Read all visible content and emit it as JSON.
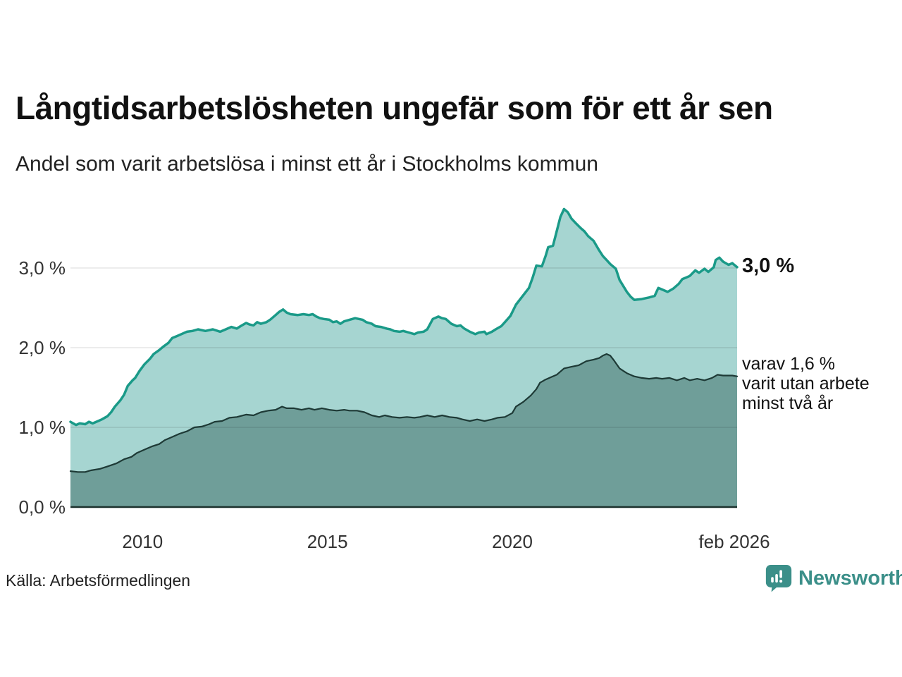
{
  "chart_data": {
    "type": "area",
    "title": "Långtidsarbetslösheten ungefär som för ett år sen",
    "subtitle": "Andel som varit arbetslösa i minst ett år i Stockholms kommun",
    "unit": "%",
    "xlim": [
      2008.05,
      2026.08
    ],
    "ylim": [
      0,
      3.9
    ],
    "grid": "horizontal",
    "legend": "none (direct annotations at line ends)",
    "x_ticks": [
      {
        "label": "2010",
        "x": 2010
      },
      {
        "label": "2015",
        "x": 2015
      },
      {
        "label": "2020",
        "x": 2020
      },
      {
        "label": "feb 2026",
        "x": 2026.08
      }
    ],
    "y_ticks": [
      {
        "label": "0,0 %",
        "value": 0
      },
      {
        "label": "1,0 %",
        "value": 1
      },
      {
        "label": "2,0 %",
        "value": 2
      },
      {
        "label": "3,0 %",
        "value": 3
      }
    ],
    "series": [
      {
        "id": "arbetslosa-minst-ett-ar",
        "end_value_label": "3,0 %",
        "color": "#1a9a88",
        "fill": "#a6d5d1",
        "points": [
          [
            2008.05,
            1.07
          ],
          [
            2008.2,
            1.03
          ],
          [
            2008.3,
            1.05
          ],
          [
            2008.45,
            1.04
          ],
          [
            2008.55,
            1.07
          ],
          [
            2008.65,
            1.05
          ],
          [
            2008.8,
            1.08
          ],
          [
            2008.9,
            1.1
          ],
          [
            2009.05,
            1.14
          ],
          [
            2009.15,
            1.19
          ],
          [
            2009.25,
            1.26
          ],
          [
            2009.4,
            1.34
          ],
          [
            2009.5,
            1.41
          ],
          [
            2009.6,
            1.52
          ],
          [
            2009.73,
            1.59
          ],
          [
            2009.8,
            1.62
          ],
          [
            2009.92,
            1.71
          ],
          [
            2010.05,
            1.79
          ],
          [
            2010.2,
            1.86
          ],
          [
            2010.3,
            1.92
          ],
          [
            2010.45,
            1.97
          ],
          [
            2010.55,
            2.01
          ],
          [
            2010.7,
            2.06
          ],
          [
            2010.8,
            2.12
          ],
          [
            2010.95,
            2.15
          ],
          [
            2011.05,
            2.17
          ],
          [
            2011.2,
            2.2
          ],
          [
            2011.35,
            2.21
          ],
          [
            2011.5,
            2.23
          ],
          [
            2011.7,
            2.21
          ],
          [
            2011.9,
            2.23
          ],
          [
            2012.1,
            2.2
          ],
          [
            2012.3,
            2.24
          ],
          [
            2012.4,
            2.26
          ],
          [
            2012.55,
            2.24
          ],
          [
            2012.65,
            2.27
          ],
          [
            2012.8,
            2.31
          ],
          [
            2012.9,
            2.29
          ],
          [
            2013.0,
            2.28
          ],
          [
            2013.1,
            2.32
          ],
          [
            2013.2,
            2.3
          ],
          [
            2013.35,
            2.32
          ],
          [
            2013.45,
            2.35
          ],
          [
            2013.6,
            2.41
          ],
          [
            2013.7,
            2.45
          ],
          [
            2013.8,
            2.48
          ],
          [
            2013.9,
            2.44
          ],
          [
            2014.0,
            2.42
          ],
          [
            2014.2,
            2.41
          ],
          [
            2014.35,
            2.42
          ],
          [
            2014.5,
            2.41
          ],
          [
            2014.6,
            2.42
          ],
          [
            2014.7,
            2.39
          ],
          [
            2014.8,
            2.37
          ],
          [
            2014.9,
            2.36
          ],
          [
            2015.05,
            2.35
          ],
          [
            2015.15,
            2.32
          ],
          [
            2015.25,
            2.33
          ],
          [
            2015.35,
            2.3
          ],
          [
            2015.45,
            2.33
          ],
          [
            2015.6,
            2.35
          ],
          [
            2015.75,
            2.37
          ],
          [
            2015.85,
            2.36
          ],
          [
            2015.95,
            2.35
          ],
          [
            2016.05,
            2.32
          ],
          [
            2016.2,
            2.3
          ],
          [
            2016.3,
            2.27
          ],
          [
            2016.45,
            2.26
          ],
          [
            2016.6,
            2.24
          ],
          [
            2016.7,
            2.23
          ],
          [
            2016.8,
            2.21
          ],
          [
            2016.95,
            2.2
          ],
          [
            2017.05,
            2.21
          ],
          [
            2017.2,
            2.19
          ],
          [
            2017.35,
            2.17
          ],
          [
            2017.45,
            2.19
          ],
          [
            2017.6,
            2.2
          ],
          [
            2017.7,
            2.23
          ],
          [
            2017.85,
            2.36
          ],
          [
            2018.0,
            2.39
          ],
          [
            2018.1,
            2.37
          ],
          [
            2018.2,
            2.36
          ],
          [
            2018.35,
            2.3
          ],
          [
            2018.5,
            2.27
          ],
          [
            2018.6,
            2.28
          ],
          [
            2018.7,
            2.24
          ],
          [
            2018.85,
            2.2
          ],
          [
            2019.0,
            2.17
          ],
          [
            2019.1,
            2.19
          ],
          [
            2019.25,
            2.2
          ],
          [
            2019.3,
            2.17
          ],
          [
            2019.45,
            2.2
          ],
          [
            2019.55,
            2.23
          ],
          [
            2019.7,
            2.27
          ],
          [
            2019.8,
            2.32
          ],
          [
            2019.95,
            2.4
          ],
          [
            2020.1,
            2.54
          ],
          [
            2020.3,
            2.66
          ],
          [
            2020.45,
            2.75
          ],
          [
            2020.55,
            2.88
          ],
          [
            2020.65,
            3.03
          ],
          [
            2020.8,
            3.02
          ],
          [
            2020.9,
            3.15
          ],
          [
            2020.97,
            3.26
          ],
          [
            2021.1,
            3.28
          ],
          [
            2021.2,
            3.46
          ],
          [
            2021.3,
            3.64
          ],
          [
            2021.4,
            3.74
          ],
          [
            2021.5,
            3.7
          ],
          [
            2021.6,
            3.62
          ],
          [
            2021.7,
            3.57
          ],
          [
            2021.85,
            3.5
          ],
          [
            2021.95,
            3.46
          ],
          [
            2022.05,
            3.4
          ],
          [
            2022.2,
            3.34
          ],
          [
            2022.35,
            3.22
          ],
          [
            2022.45,
            3.15
          ],
          [
            2022.55,
            3.1
          ],
          [
            2022.65,
            3.05
          ],
          [
            2022.8,
            2.99
          ],
          [
            2022.9,
            2.85
          ],
          [
            2023.1,
            2.7
          ],
          [
            2023.2,
            2.64
          ],
          [
            2023.3,
            2.6
          ],
          [
            2023.5,
            2.61
          ],
          [
            2023.7,
            2.63
          ],
          [
            2023.85,
            2.65
          ],
          [
            2023.95,
            2.75
          ],
          [
            2024.05,
            2.73
          ],
          [
            2024.2,
            2.7
          ],
          [
            2024.35,
            2.74
          ],
          [
            2024.5,
            2.8
          ],
          [
            2024.6,
            2.86
          ],
          [
            2024.7,
            2.88
          ],
          [
            2024.8,
            2.9
          ],
          [
            2024.95,
            2.97
          ],
          [
            2025.05,
            2.94
          ],
          [
            2025.2,
            2.99
          ],
          [
            2025.3,
            2.95
          ],
          [
            2025.45,
            3.01
          ],
          [
            2025.5,
            3.1
          ],
          [
            2025.6,
            3.13
          ],
          [
            2025.7,
            3.08
          ],
          [
            2025.85,
            3.04
          ],
          [
            2025.95,
            3.06
          ],
          [
            2026.08,
            3.01
          ]
        ]
      },
      {
        "id": "arbetslosa-minst-tva-ar",
        "end_value_label": "1,6 %",
        "color": "#1e3a36",
        "fill": "#6f9e99",
        "points": [
          [
            2008.05,
            0.45
          ],
          [
            2008.25,
            0.44
          ],
          [
            2008.45,
            0.44
          ],
          [
            2008.6,
            0.46
          ],
          [
            2008.85,
            0.48
          ],
          [
            2009.05,
            0.51
          ],
          [
            2009.3,
            0.55
          ],
          [
            2009.5,
            0.6
          ],
          [
            2009.7,
            0.63
          ],
          [
            2009.85,
            0.68
          ],
          [
            2010.05,
            0.72
          ],
          [
            2010.25,
            0.76
          ],
          [
            2010.45,
            0.79
          ],
          [
            2010.6,
            0.84
          ],
          [
            2010.8,
            0.88
          ],
          [
            2011.0,
            0.92
          ],
          [
            2011.2,
            0.95
          ],
          [
            2011.4,
            1.0
          ],
          [
            2011.6,
            1.01
          ],
          [
            2011.8,
            1.04
          ],
          [
            2011.95,
            1.07
          ],
          [
            2012.15,
            1.08
          ],
          [
            2012.35,
            1.12
          ],
          [
            2012.55,
            1.13
          ],
          [
            2012.8,
            1.16
          ],
          [
            2013.0,
            1.15
          ],
          [
            2013.2,
            1.19
          ],
          [
            2013.4,
            1.21
          ],
          [
            2013.6,
            1.22
          ],
          [
            2013.77,
            1.26
          ],
          [
            2013.9,
            1.24
          ],
          [
            2014.1,
            1.24
          ],
          [
            2014.3,
            1.22
          ],
          [
            2014.5,
            1.24
          ],
          [
            2014.65,
            1.22
          ],
          [
            2014.85,
            1.24
          ],
          [
            2015.05,
            1.22
          ],
          [
            2015.25,
            1.21
          ],
          [
            2015.45,
            1.22
          ],
          [
            2015.6,
            1.21
          ],
          [
            2015.8,
            1.21
          ],
          [
            2016.0,
            1.19
          ],
          [
            2016.2,
            1.15
          ],
          [
            2016.4,
            1.13
          ],
          [
            2016.55,
            1.15
          ],
          [
            2016.75,
            1.13
          ],
          [
            2016.95,
            1.12
          ],
          [
            2017.15,
            1.13
          ],
          [
            2017.35,
            1.12
          ],
          [
            2017.5,
            1.13
          ],
          [
            2017.7,
            1.15
          ],
          [
            2017.9,
            1.13
          ],
          [
            2018.1,
            1.15
          ],
          [
            2018.3,
            1.13
          ],
          [
            2018.5,
            1.12
          ],
          [
            2018.65,
            1.1
          ],
          [
            2018.85,
            1.08
          ],
          [
            2019.05,
            1.1
          ],
          [
            2019.25,
            1.08
          ],
          [
            2019.45,
            1.1
          ],
          [
            2019.6,
            1.12
          ],
          [
            2019.8,
            1.13
          ],
          [
            2020.0,
            1.18
          ],
          [
            2020.1,
            1.26
          ],
          [
            2020.3,
            1.32
          ],
          [
            2020.5,
            1.4
          ],
          [
            2020.65,
            1.48
          ],
          [
            2020.75,
            1.56
          ],
          [
            2020.9,
            1.6
          ],
          [
            2021.05,
            1.63
          ],
          [
            2021.2,
            1.66
          ],
          [
            2021.4,
            1.74
          ],
          [
            2021.6,
            1.76
          ],
          [
            2021.8,
            1.78
          ],
          [
            2022.0,
            1.83
          ],
          [
            2022.2,
            1.85
          ],
          [
            2022.35,
            1.87
          ],
          [
            2022.45,
            1.9
          ],
          [
            2022.55,
            1.92
          ],
          [
            2022.65,
            1.9
          ],
          [
            2022.75,
            1.84
          ],
          [
            2022.9,
            1.74
          ],
          [
            2023.1,
            1.68
          ],
          [
            2023.3,
            1.64
          ],
          [
            2023.5,
            1.62
          ],
          [
            2023.7,
            1.61
          ],
          [
            2023.9,
            1.62
          ],
          [
            2024.05,
            1.61
          ],
          [
            2024.25,
            1.62
          ],
          [
            2024.45,
            1.59
          ],
          [
            2024.65,
            1.62
          ],
          [
            2024.8,
            1.59
          ],
          [
            2025.0,
            1.61
          ],
          [
            2025.2,
            1.59
          ],
          [
            2025.4,
            1.62
          ],
          [
            2025.55,
            1.66
          ],
          [
            2025.7,
            1.65
          ],
          [
            2025.95,
            1.65
          ],
          [
            2026.08,
            1.64
          ]
        ]
      }
    ],
    "annotations": {
      "total_label": "3,0 %",
      "detail_lines": [
        "varav 1,6 %",
        "varit utan arbete",
        "minst två år"
      ]
    },
    "colors": {
      "gridline": "#e0e0e0",
      "baseline": "#1c312d",
      "axis_text": "#333333"
    }
  },
  "footer": {
    "source": "Källa: Arbetsförmedlingen",
    "logo_text": "Newsworthy",
    "logo_color": "#3b8f89"
  }
}
